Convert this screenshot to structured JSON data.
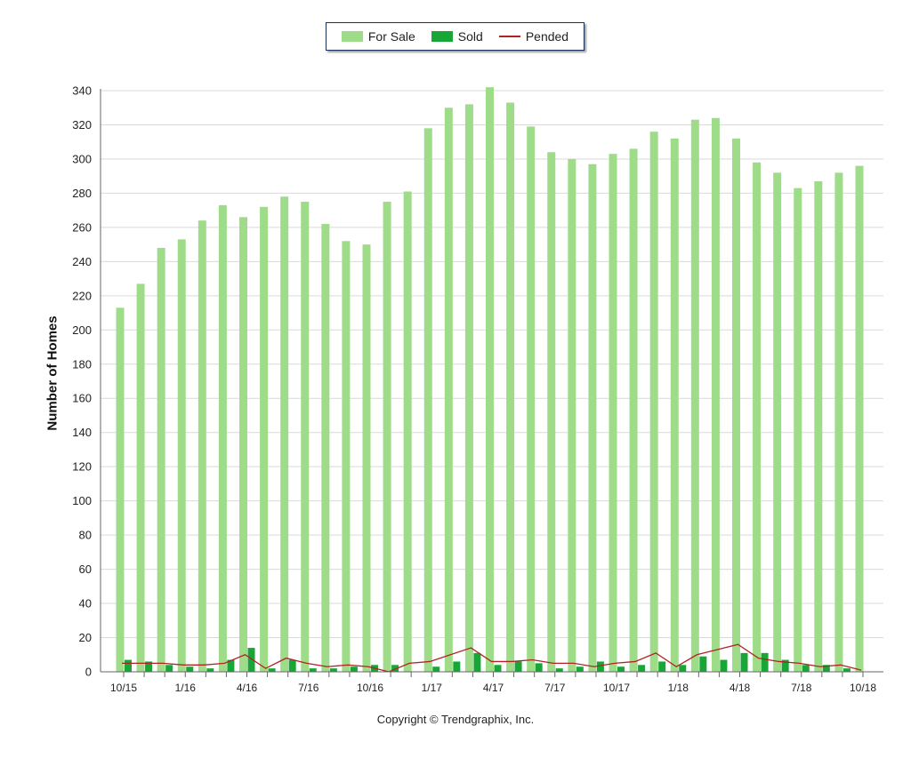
{
  "legend": {
    "for_sale": "For Sale",
    "sold": "Sold",
    "pended": "Pended"
  },
  "copyright": "Copyright © Trendgraphix, Inc.",
  "colors": {
    "for_sale": "#9fdc8a",
    "sold": "#18a636",
    "pended": "#b22222",
    "grid": "#d9d9d9",
    "axis": "#666666"
  },
  "chart_data": {
    "type": "bar",
    "ylabel": "Number of Homes",
    "xlabel": "",
    "ylim": [
      0,
      340
    ],
    "yticks": [
      0,
      20,
      40,
      60,
      80,
      100,
      120,
      140,
      160,
      180,
      200,
      220,
      240,
      260,
      280,
      300,
      320,
      340
    ],
    "grid": true,
    "legend_position": "top-center",
    "categories": [
      "10/15",
      "11/15",
      "12/15",
      "1/16",
      "2/16",
      "3/16",
      "4/16",
      "5/16",
      "6/16",
      "7/16",
      "8/16",
      "9/16",
      "10/16",
      "11/16",
      "12/16",
      "1/17",
      "2/17",
      "3/17",
      "4/17",
      "5/17",
      "6/17",
      "7/17",
      "8/17",
      "9/17",
      "10/17",
      "11/17",
      "12/17",
      "1/18",
      "2/18",
      "3/18",
      "4/18",
      "5/18",
      "6/18",
      "7/18",
      "8/18",
      "9/18",
      "10/18"
    ],
    "tick_labels": [
      "10/15",
      "",
      "",
      "1/16",
      "",
      "",
      "4/16",
      "",
      "",
      "7/16",
      "",
      "",
      "10/16",
      "",
      "",
      "1/17",
      "",
      "",
      "4/17",
      "",
      "",
      "7/17",
      "",
      "",
      "10/17",
      "",
      "",
      "1/18",
      "",
      "",
      "4/18",
      "",
      "",
      "7/18",
      "",
      "",
      "10/18"
    ],
    "series": [
      {
        "name": "For Sale",
        "type": "bar",
        "values": [
          213,
          227,
          248,
          253,
          264,
          273,
          266,
          272,
          278,
          275,
          262,
          252,
          250,
          275,
          281,
          318,
          330,
          332,
          342,
          333,
          319,
          304,
          300,
          297,
          303,
          306,
          316,
          312,
          323,
          324,
          312,
          298,
          292,
          283,
          287,
          292,
          296
        ]
      },
      {
        "name": "Sold",
        "type": "bar",
        "values": [
          7,
          6,
          4,
          3,
          2,
          7,
          14,
          2,
          7,
          2,
          2,
          3,
          4,
          4,
          0,
          3,
          6,
          11,
          4,
          6,
          5,
          2,
          3,
          6,
          3,
          4,
          6,
          4,
          9,
          7,
          11,
          11,
          7,
          4,
          4,
          2,
          0
        ]
      },
      {
        "name": "Pended",
        "type": "line",
        "values": [
          5,
          5,
          5,
          4,
          4,
          5,
          10,
          2,
          8,
          5,
          3,
          4,
          3,
          0,
          5,
          6,
          10,
          14,
          6,
          6,
          7,
          5,
          5,
          3,
          5,
          6,
          11,
          3,
          10,
          13,
          16,
          8,
          6,
          5,
          3,
          4,
          1
        ]
      }
    ]
  }
}
